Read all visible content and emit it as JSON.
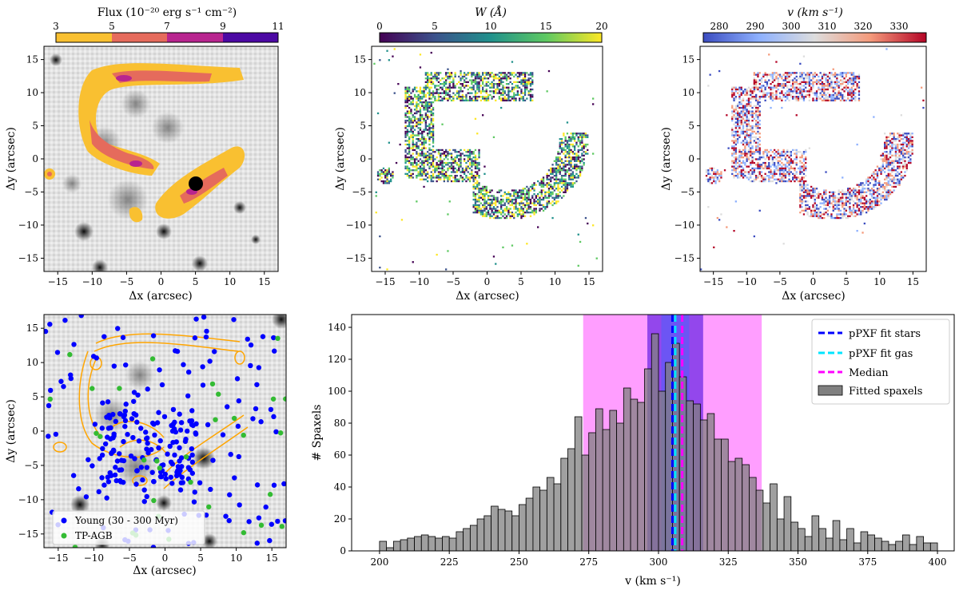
{
  "panels": {
    "flux": {
      "colorbar_label": "Flux (10$^{-20}$ erg s$^{-1}$ cm$^{-2}$)",
      "colorbar_label_display": "Flux (10⁻²⁰ erg s⁻¹ cm⁻²)",
      "colorbar_ticks": [
        "3",
        "5",
        "7",
        "9",
        "11"
      ],
      "colorbar_colors": [
        "#f9c031",
        "#e56b5c",
        "#b8258f",
        "#4c09a3"
      ],
      "xlabel": "Δx (arcsec)",
      "ylabel": "Δy (arcsec)"
    },
    "ew": {
      "colorbar_label": "W (Å)",
      "colorbar_ticks": [
        "0",
        "5",
        "10",
        "15",
        "20"
      ],
      "xlabel": "Δx (arcsec)",
      "ylabel": "Δy (arcsec)"
    },
    "vel": {
      "colorbar_label": "v (km s⁻¹)",
      "colorbar_ticks": [
        "280",
        "290",
        "300",
        "310",
        "320",
        "330"
      ],
      "xlabel": "Δx (arcsec)",
      "ylabel": "Δy (arcsec)"
    },
    "stars": {
      "xlabel": "Δx (arcsec)",
      "ylabel": "Δy (arcsec)",
      "legend": [
        {
          "label": "Young (30 - 300 Myr)",
          "color": "#0000ff"
        },
        {
          "label": "TP-AGB",
          "color": "#33bb33"
        }
      ]
    },
    "spatial_ticks": {
      "x": [
        "−15",
        "−10",
        "−5",
        "0",
        "5",
        "10",
        "15"
      ],
      "y": [
        "15",
        "10",
        "5",
        "0",
        "−5",
        "−10",
        "−15"
      ]
    }
  },
  "chart_data": {
    "type": "bar",
    "title": "",
    "xlabel": "v (km s⁻¹)",
    "ylabel": "# Spaxels",
    "xlim": [
      190,
      406
    ],
    "ylim": [
      0,
      148
    ],
    "xticks": [
      200,
      225,
      250,
      275,
      300,
      325,
      350,
      375,
      400
    ],
    "yticks": [
      0,
      20,
      40,
      60,
      80,
      100,
      120,
      140
    ],
    "bin_start": 200,
    "bin_width": 2.5,
    "values": [
      6,
      2,
      6,
      7,
      8,
      9,
      10,
      9,
      8,
      9,
      8,
      12,
      14,
      16,
      20,
      22,
      28,
      26,
      25,
      22,
      29,
      33,
      40,
      38,
      46,
      42,
      58,
      64,
      84,
      60,
      74,
      89,
      76,
      88,
      80,
      102,
      95,
      93,
      114,
      136,
      100,
      118,
      130,
      109,
      94,
      92,
      82,
      86,
      70,
      70,
      56,
      58,
      54,
      46,
      38,
      30,
      42,
      20,
      34,
      18,
      14,
      9,
      22,
      14,
      8,
      19,
      7,
      14,
      5,
      12,
      10,
      8,
      6,
      4,
      6,
      10,
      4,
      9,
      5,
      5
    ],
    "bands": [
      {
        "name": "median_spread",
        "from": 273,
        "to": 337,
        "color": "#ff00ff",
        "alpha": 0.38
      },
      {
        "name": "gas_spread",
        "from": 296,
        "to": 316,
        "color": "#3a00dd",
        "alpha": 0.55
      },
      {
        "name": "stars_spread",
        "from": 301,
        "to": 311,
        "color": "#3d66ff",
        "alpha": 0.45
      }
    ],
    "lines": [
      {
        "label": "pPXF fit stars",
        "value": 305.0,
        "color": "#0000ff"
      },
      {
        "label": "pPXF fit gas",
        "value": 306.0,
        "color": "#00e5ff"
      },
      {
        "label": "Median",
        "value": 308.5,
        "color": "#ff00ff"
      }
    ],
    "legend": [
      {
        "label": "pPXF fit stars",
        "type": "dash",
        "color": "#0000ff"
      },
      {
        "label": "pPXF fit gas",
        "type": "dash",
        "color": "#00e5ff"
      },
      {
        "label": "Median",
        "type": "dash",
        "color": "#ff00ff"
      },
      {
        "label": "Fitted spaxels",
        "type": "patch",
        "color": "#808080"
      }
    ]
  }
}
